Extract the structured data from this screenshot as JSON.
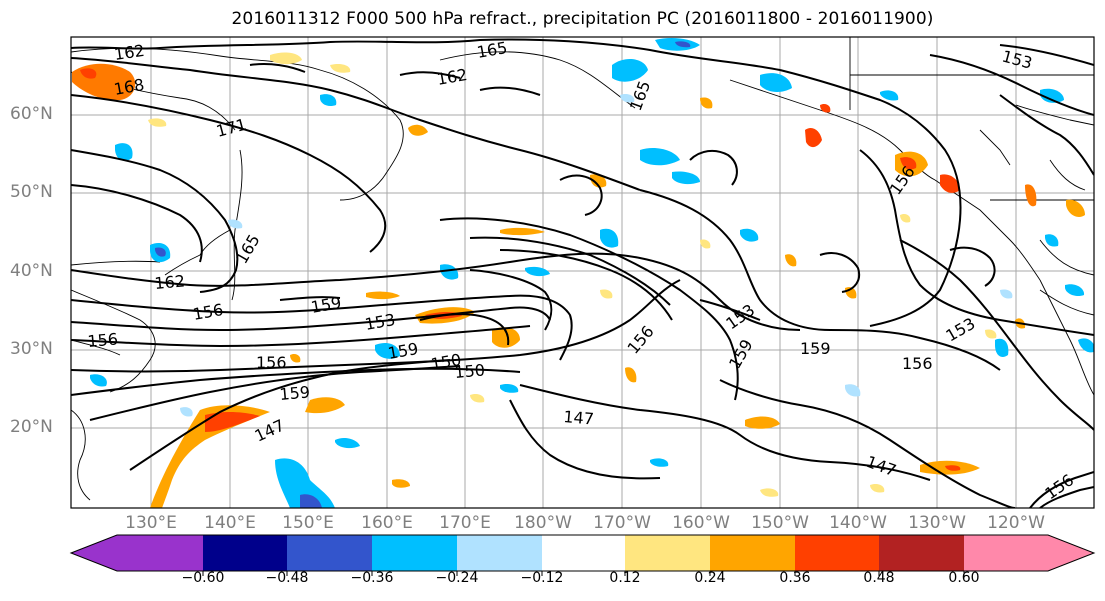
{
  "title": "2016011312 F000 500 hPa refract., precipitation PC (2016011800 - 2016011900)",
  "lat_labels": [
    "60°N",
    "50°N",
    "40°N",
    "30°N",
    "20°N"
  ],
  "lon_labels": [
    "130°E",
    "140°E",
    "150°E",
    "160°E",
    "170°E",
    "180°W",
    "170°W",
    "160°W",
    "150°W",
    "140°W",
    "130°W",
    "120°W"
  ],
  "contour_labels": [
    "162",
    "168",
    "171",
    "165",
    "162",
    "165",
    "162",
    "165",
    "159",
    "156",
    "156",
    "159",
    "153",
    "150",
    "156",
    "159",
    "147",
    "156",
    "150",
    "147",
    "153",
    "156",
    "159",
    "159",
    "153",
    "156",
    "147",
    "153",
    "156"
  ],
  "colorbar": {
    "ticks": [
      "−0.60",
      "−0.48",
      "−0.36",
      "−0.24",
      "−0.12",
      "0.12",
      "0.24",
      "0.36",
      "0.48",
      "0.60"
    ],
    "colors": [
      "#9933cc",
      "#00008b",
      "#3355cc",
      "#00bfff",
      "#b0e2ff",
      "#ffffff",
      "#ffe680",
      "#ffa500",
      "#ff4000",
      "#b22222",
      "#ff88aa"
    ]
  }
}
